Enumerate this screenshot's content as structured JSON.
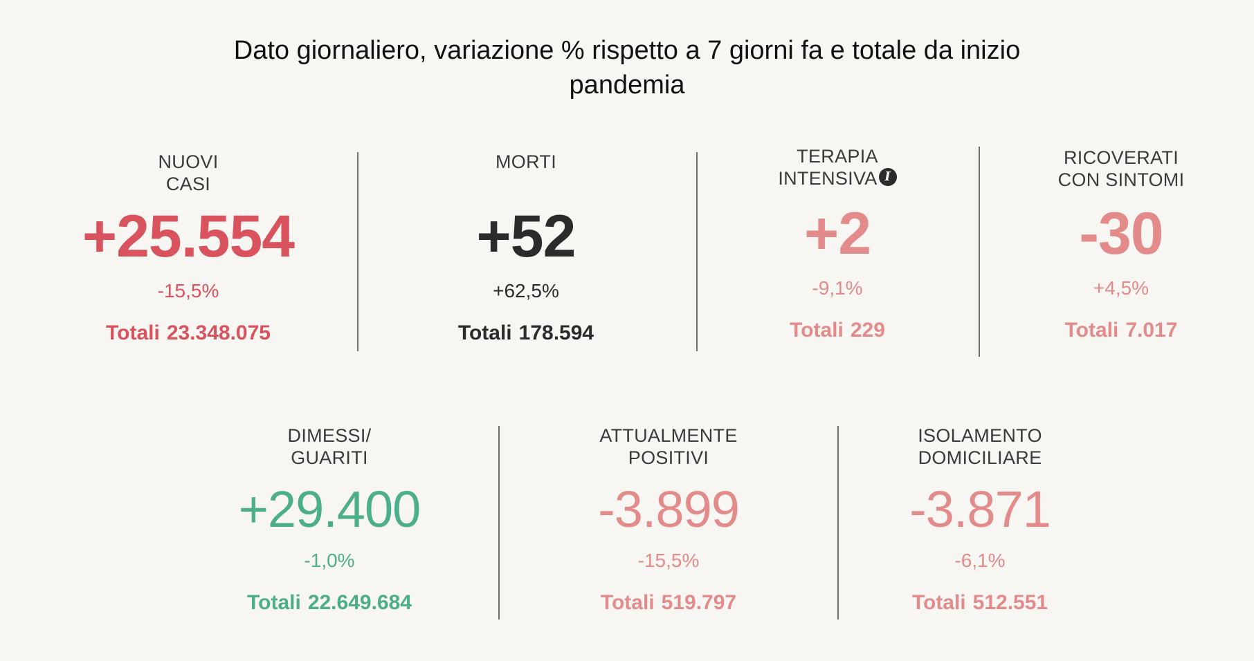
{
  "title": "Dato giornaliero, variazione % rispetto a 7 giorni fa e totale da inizio pandemia",
  "colors": {
    "red": "#d9535f",
    "dark": "#2b2b2b",
    "pink": "#e38b8b",
    "green": "#4cae8a"
  },
  "totals_label": "Totali",
  "stats": {
    "nuovi_casi": {
      "label_line1": "NUOVI",
      "label_line2": "CASI",
      "value": "+25.554",
      "change": "-15,5%",
      "total": "23.348.075"
    },
    "morti": {
      "label_line1": "MORTI",
      "value": "+52",
      "change": "+62,5%",
      "total": "178.594"
    },
    "terapia_intensiva": {
      "label_line1": "TERAPIA",
      "label_line2": "INTENSIVA",
      "info_icon": "i",
      "value": "+2",
      "change": "-9,1%",
      "total": "229"
    },
    "ricoverati": {
      "label_line1": "RICOVERATI",
      "label_line2": "CON SINTOMI",
      "value": "-30",
      "change": "+4,5%",
      "total": "7.017"
    },
    "dimessi": {
      "label_line1": "DIMESSI/",
      "label_line2": "GUARITI",
      "value": "+29.400",
      "change": "-1,0%",
      "total": "22.649.684"
    },
    "positivi": {
      "label_line1": "ATTUALMENTE",
      "label_line2": "POSITIVI",
      "value": "-3.899",
      "change": "-15,5%",
      "total": "519.797"
    },
    "isolamento": {
      "label_line1": "ISOLAMENTO",
      "label_line2": "DOMICILIARE",
      "value": "-3.871",
      "change": "-6,1%",
      "total": "512.551"
    }
  }
}
